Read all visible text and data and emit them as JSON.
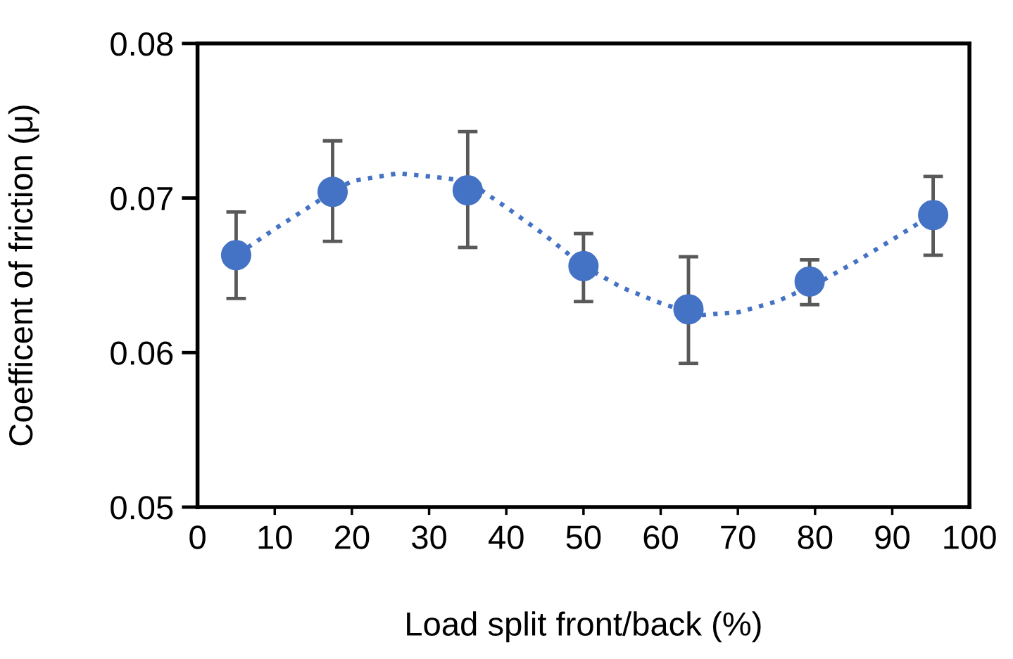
{
  "chart_data": {
    "type": "scatter",
    "xlabel": "Load split front/back (%)",
    "ylabel": "Coefficent of friction (μ)",
    "xlim": [
      0,
      100
    ],
    "xticks": [
      0,
      10,
      20,
      30,
      40,
      50,
      60,
      70,
      80,
      90,
      100
    ],
    "ylim": [
      0.05,
      0.08
    ],
    "yticks": [
      0.05,
      0.06,
      0.07,
      0.08
    ],
    "grid": false,
    "legend": false,
    "series": [
      {
        "color": "#4472c4",
        "marker": "circle",
        "x": [
          5,
          17.5,
          35,
          50,
          63.6,
          79.3,
          95.3
        ],
        "values": [
          0.0663,
          0.0704,
          0.0705,
          0.0656,
          0.0628,
          0.0646,
          0.0689
        ],
        "errors": [
          [
            0.0635,
            0.0691
          ],
          [
            0.0672,
            0.0737
          ],
          [
            0.0668,
            0.0743
          ],
          [
            0.0633,
            0.0677
          ],
          [
            0.0593,
            0.0662
          ],
          [
            0.0631,
            0.066
          ],
          [
            0.0663,
            0.0714
          ]
        ]
      },
      {
        "type": "line",
        "color": "#4472c4",
        "marker": "none",
        "line_style": "dotted",
        "x": [
          6.5,
          10,
          17.5,
          20,
          26,
          30,
          35,
          40,
          45,
          50,
          55,
          60,
          65,
          67,
          70,
          75,
          80,
          85,
          90,
          93.5
        ],
        "values": [
          0.0668,
          0.068,
          0.0704,
          0.0711,
          0.0716,
          0.0714,
          0.0711,
          0.0694,
          0.0676,
          0.0656,
          0.0642,
          0.0632,
          0.0624,
          0.0625,
          0.0626,
          0.0633,
          0.0644,
          0.0658,
          0.0673,
          0.0684
        ]
      }
    ]
  }
}
